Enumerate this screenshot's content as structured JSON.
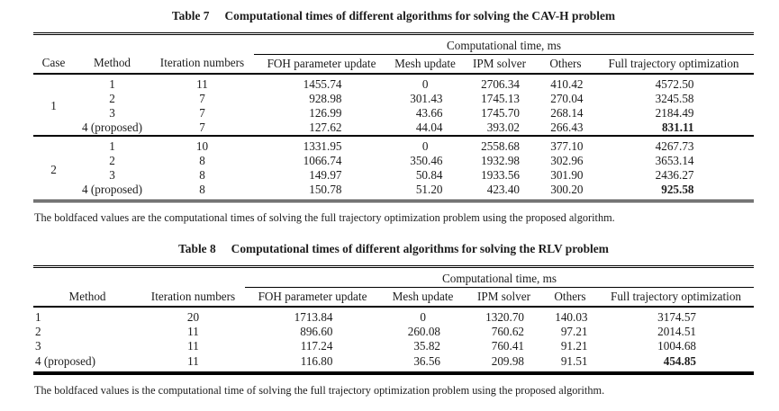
{
  "colors": {
    "ink": "#1c1c1c",
    "background": "#ffffff"
  },
  "table7": {
    "title_label": "Table 7",
    "title_text": "Computational times of different algorithms for solving the CAV-H problem",
    "span_header": "Computational time, ms",
    "columns": {
      "case": "Case",
      "method": "Method",
      "iterations": "Iteration numbers",
      "foh": "FOH parameter update",
      "mesh": "Mesh update",
      "ipm": "IPM solver",
      "others": "Others",
      "full": "Full trajectory optimization"
    },
    "groups": [
      {
        "case": "1",
        "rows": [
          {
            "method": "1",
            "iterations": "11",
            "foh": "1455.74",
            "mesh": "0",
            "ipm": "2706.34",
            "others": "410.42",
            "full": "4572.50",
            "full_bold": false
          },
          {
            "method": "2",
            "iterations": "7",
            "foh": "928.98",
            "mesh": "301.43",
            "ipm": "1745.13",
            "others": "270.04",
            "full": "3245.58",
            "full_bold": false
          },
          {
            "method": "3",
            "iterations": "7",
            "foh": "126.99",
            "mesh": "43.66",
            "ipm": "1745.70",
            "others": "268.14",
            "full": "2184.49",
            "full_bold": false
          },
          {
            "method": "4 (proposed)",
            "iterations": "7",
            "foh": "127.62",
            "mesh": "44.04",
            "ipm": "393.02",
            "others": "266.43",
            "full": "831.11",
            "full_bold": true
          }
        ]
      },
      {
        "case": "2",
        "rows": [
          {
            "method": "1",
            "iterations": "10",
            "foh": "1331.95",
            "mesh": "0",
            "ipm": "2558.68",
            "others": "377.10",
            "full": "4267.73",
            "full_bold": false
          },
          {
            "method": "2",
            "iterations": "8",
            "foh": "1066.74",
            "mesh": "350.46",
            "ipm": "1932.98",
            "others": "302.96",
            "full": "3653.14",
            "full_bold": false
          },
          {
            "method": "3",
            "iterations": "8",
            "foh": "149.97",
            "mesh": "50.84",
            "ipm": "1933.56",
            "others": "301.90",
            "full": "2436.27",
            "full_bold": false
          },
          {
            "method": "4 (proposed)",
            "iterations": "8",
            "foh": "150.78",
            "mesh": "51.20",
            "ipm": "423.40",
            "others": "300.20",
            "full": "925.58",
            "full_bold": true
          }
        ]
      }
    ],
    "footnote": "The boldfaced values are the computational times of solving the full trajectory optimization problem using the proposed algorithm."
  },
  "table8": {
    "title_label": "Table 8",
    "title_text": "Computational times of different algorithms for solving the RLV problem",
    "span_header": "Computational time, ms",
    "columns": {
      "method": "Method",
      "iterations": "Iteration numbers",
      "foh": "FOH parameter update",
      "mesh": "Mesh update",
      "ipm": "IPM solver",
      "others": "Others",
      "full": "Full trajectory optimization"
    },
    "groups": [
      {
        "rows": [
          {
            "method": "1",
            "iterations": "20",
            "foh": "1713.84",
            "mesh": "0",
            "ipm": "1320.70",
            "others": "140.03",
            "full": "3174.57",
            "full_bold": false
          },
          {
            "method": "2",
            "iterations": "11",
            "foh": "896.60",
            "mesh": "260.08",
            "ipm": "760.62",
            "others": "97.21",
            "full": "2014.51",
            "full_bold": false
          },
          {
            "method": "3",
            "iterations": "11",
            "foh": "117.24",
            "mesh": "35.82",
            "ipm": "760.41",
            "others": "91.21",
            "full": "1004.68",
            "full_bold": false
          },
          {
            "method": "4 (proposed)",
            "iterations": "11",
            "foh": "116.80",
            "mesh": "36.56",
            "ipm": "209.98",
            "others": "91.51",
            "full": "454.85",
            "full_bold": true
          }
        ]
      }
    ],
    "footnote": "The boldfaced values is the computational time of solving the full trajectory optimization problem using the proposed algorithm."
  }
}
